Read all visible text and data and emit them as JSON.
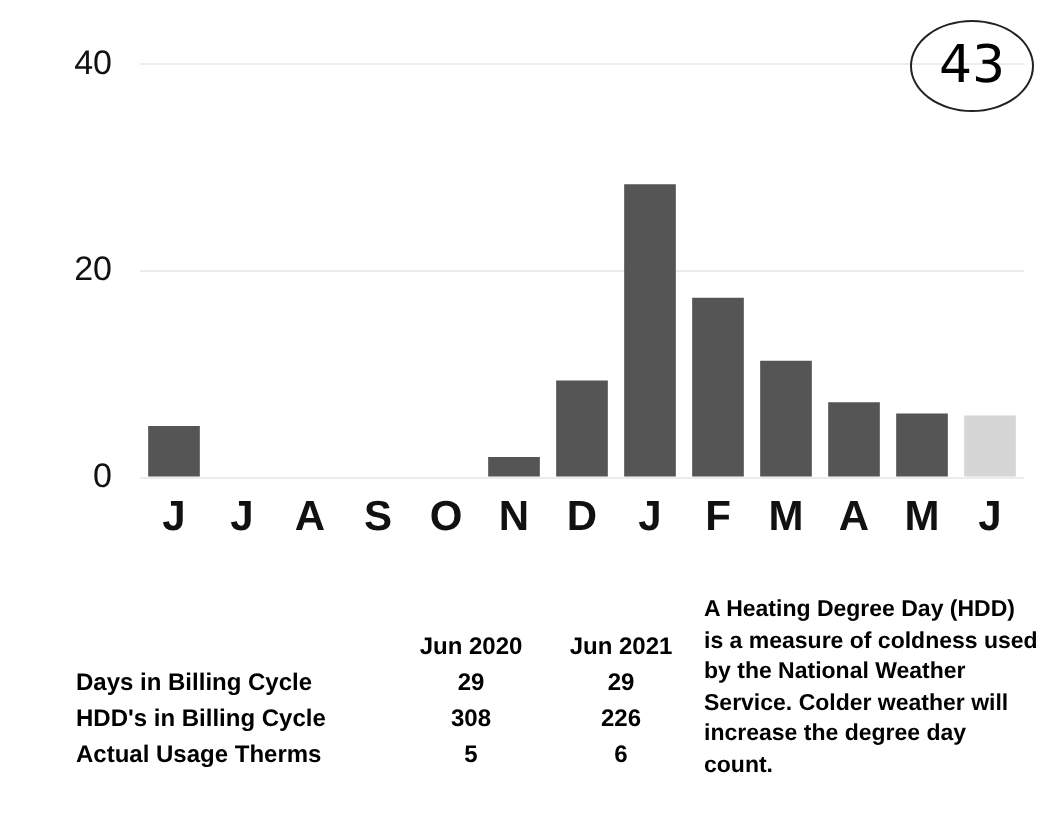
{
  "chart_data": {
    "type": "bar",
    "categories": [
      "J",
      "J",
      "A",
      "S",
      "O",
      "N",
      "D",
      "J",
      "F",
      "M",
      "A",
      "M",
      "J"
    ],
    "values": [
      5,
      0,
      0,
      0,
      0,
      2,
      9.4,
      28.4,
      17.4,
      11.3,
      7.3,
      6.2,
      6
    ],
    "colors": [
      "#555555",
      "#555555",
      "#555555",
      "#555555",
      "#555555",
      "#555555",
      "#555555",
      "#555555",
      "#555555",
      "#555555",
      "#555555",
      "#555555",
      "#d6d6d6"
    ],
    "ylim": [
      0,
      40
    ],
    "yticks": [
      0,
      20,
      40
    ],
    "grid": "y",
    "annotations": [
      "43",
      "Jun 2020",
      "Jun 2021",
      "Days in Billing Cycle",
      "29",
      "29",
      "HDD's in Billing Cycle",
      "308",
      "226",
      "Actual Usage Therms",
      "5",
      "6",
      "A Heating Degree Day (HDD) is a measure of coldness used by the National Weather Service. Colder weather will increase the degree day count."
    ]
  }
}
